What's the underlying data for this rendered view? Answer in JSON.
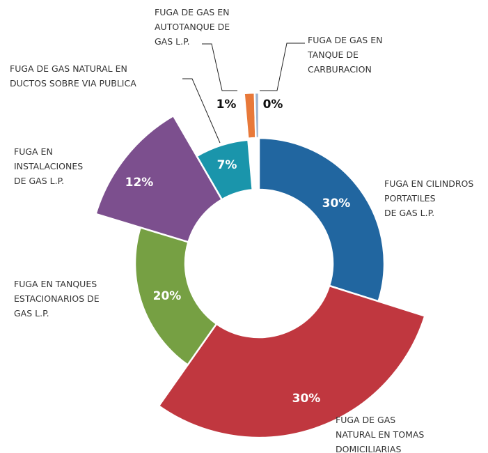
{
  "chart_data": {
    "type": "donut",
    "categories": [
      [
        "FUGA EN CILINDROS",
        "PORTATILES",
        "DE GAS L.P."
      ],
      [
        "FUGA DE GAS",
        "NATURAL EN TOMAS",
        "DOMICILIARIAS"
      ],
      [
        "FUGA EN TANQUES",
        "ESTACIONARIOS DE",
        "GAS L.P."
      ],
      [
        "FUGA EN",
        "INSTALACIONES",
        "DE GAS L.P."
      ],
      [
        "FUGA DE GAS NATURAL EN",
        "DUCTOS SOBRE VIA PUBLICA"
      ],
      [
        "FUGA DE GAS EN",
        "AUTOTANQUE DE",
        "GAS L.P."
      ],
      [
        "FUGA DE GAS EN",
        "TANQUE DE",
        "CARBURACION"
      ]
    ],
    "values": [
      30,
      30,
      20,
      12,
      7,
      1,
      0.4
    ],
    "value_labels": [
      "30%",
      "30%",
      "20%",
      "12%",
      "7%",
      "1%",
      "0%"
    ],
    "colors": [
      "#2166a0",
      "#c0373f",
      "#76a043",
      "#7c4f8e",
      "#1a95ab",
      "#e8793a",
      "#9db3cf"
    ]
  }
}
